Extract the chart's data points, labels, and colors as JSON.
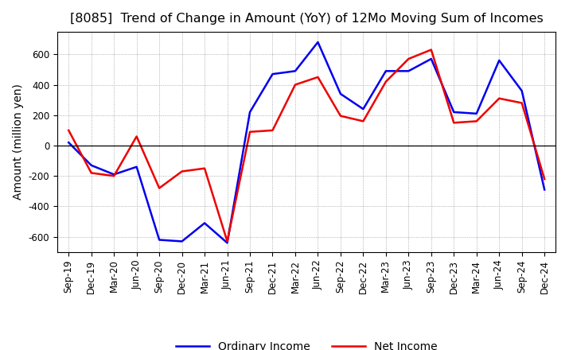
{
  "title": "[8085]  Trend of Change in Amount (YoY) of 12Mo Moving Sum of Incomes",
  "ylabel": "Amount (million yen)",
  "x_labels": [
    "Sep-19",
    "Dec-19",
    "Mar-20",
    "Jun-20",
    "Sep-20",
    "Dec-20",
    "Mar-21",
    "Jun-21",
    "Sep-21",
    "Dec-21",
    "Mar-22",
    "Jun-22",
    "Sep-22",
    "Dec-22",
    "Mar-23",
    "Jun-23",
    "Sep-23",
    "Dec-23",
    "Mar-24",
    "Jun-24",
    "Sep-24",
    "Dec-24"
  ],
  "ordinary_income": [
    20,
    -130,
    -190,
    -140,
    -620,
    -630,
    -510,
    -640,
    220,
    470,
    490,
    680,
    340,
    240,
    490,
    490,
    570,
    220,
    210,
    560,
    360,
    -290
  ],
  "net_income": [
    100,
    -180,
    -200,
    60,
    -280,
    -170,
    -150,
    -630,
    90,
    100,
    400,
    450,
    195,
    160,
    420,
    570,
    630,
    150,
    160,
    310,
    280,
    -220
  ],
  "ordinary_color": "#0000EE",
  "net_color": "#EE0000",
  "ylim": [
    -700,
    750
  ],
  "yticks": [
    -600,
    -400,
    -200,
    0,
    200,
    400,
    600
  ],
  "legend_labels": [
    "Ordinary Income",
    "Net Income"
  ],
  "bg_color": "#FFFFFF",
  "grid_color": "#999999",
  "title_fontsize": 11.5,
  "axis_fontsize": 10,
  "tick_fontsize": 8.5,
  "line_width": 1.8
}
